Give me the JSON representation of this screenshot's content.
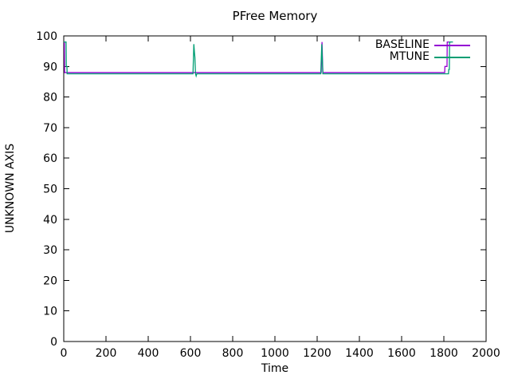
{
  "window": {
    "background": "#ffffff"
  },
  "chart_data": {
    "type": "line",
    "title": "PFree Memory",
    "xlabel": "Time",
    "ylabel": "UNKNOWN AXIS",
    "xlim": [
      0,
      2000
    ],
    "ylim": [
      0,
      100
    ],
    "xticks": [
      0,
      200,
      400,
      600,
      800,
      1000,
      1200,
      1400,
      1600,
      1800,
      2000
    ],
    "yticks": [
      0,
      10,
      20,
      30,
      40,
      50,
      60,
      70,
      80,
      90,
      100
    ],
    "grid": false,
    "border": "box",
    "tick_style": "inward-mirrored",
    "axis_color": "#000000",
    "legend_position": "top-right-inside",
    "series": [
      {
        "name": "BASELINE",
        "color": "#9400d3",
        "points": [
          [
            0,
            98
          ],
          [
            3,
            98
          ],
          [
            4,
            88
          ],
          [
            1219,
            88
          ],
          [
            1223,
            98
          ],
          [
            1227,
            88
          ],
          [
            1804,
            88
          ],
          [
            1805,
            90
          ],
          [
            1815,
            90
          ],
          [
            1816,
            98
          ],
          [
            1834,
            98
          ]
        ]
      },
      {
        "name": "MTUNE",
        "color": "#009e73",
        "points": [
          [
            0,
            98
          ],
          [
            11,
            98
          ],
          [
            12,
            90
          ],
          [
            15,
            90
          ],
          [
            16,
            87.6
          ],
          [
            612,
            87.6
          ],
          [
            616,
            97.3
          ],
          [
            619,
            94.5
          ],
          [
            621,
            93
          ],
          [
            624,
            87.6
          ],
          [
            627,
            86.9
          ],
          [
            630,
            87.6
          ],
          [
            1217,
            87.6
          ],
          [
            1222,
            97.3
          ],
          [
            1227,
            87.6
          ],
          [
            1822,
            87.6
          ],
          [
            1823,
            89
          ],
          [
            1826,
            89
          ],
          [
            1827,
            98
          ],
          [
            1843,
            98
          ]
        ]
      }
    ]
  }
}
